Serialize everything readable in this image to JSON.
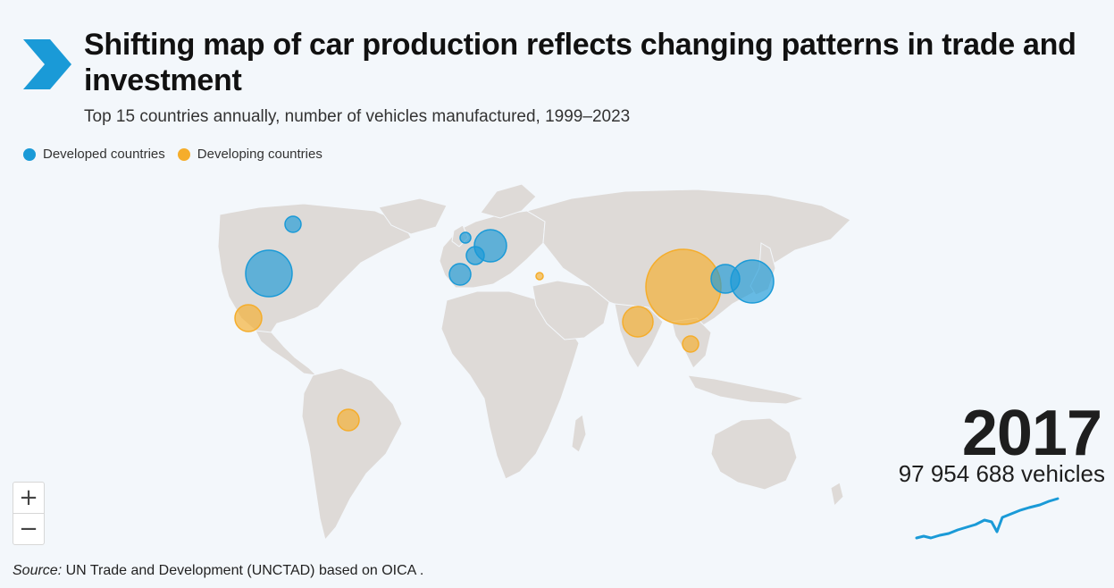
{
  "title": "Shifting map of car production reflects changing patterns in trade and investment",
  "subtitle": "Top 15 countries annually, number of vehicles manufactured, 1999–2023",
  "legend": [
    {
      "label": "Developed countries",
      "color": "#1a9ad7"
    },
    {
      "label": "Developing countries",
      "color": "#f5ad2b"
    }
  ],
  "colors": {
    "developed": "#1a9ad7",
    "developing": "#f5ad2b",
    "land": "#dedad7",
    "background": "#f3f7fb"
  },
  "zoom": {
    "in_label": "+",
    "out_label": "−"
  },
  "current": {
    "year": "2017",
    "total_label": "97 954 688 vehicles"
  },
  "source": {
    "prefix": "Source:",
    "text": "UN Trade and Development (UNCTAD) based on OICA ."
  },
  "icons": {
    "logo": "chevron-arrow-logo"
  }
}
